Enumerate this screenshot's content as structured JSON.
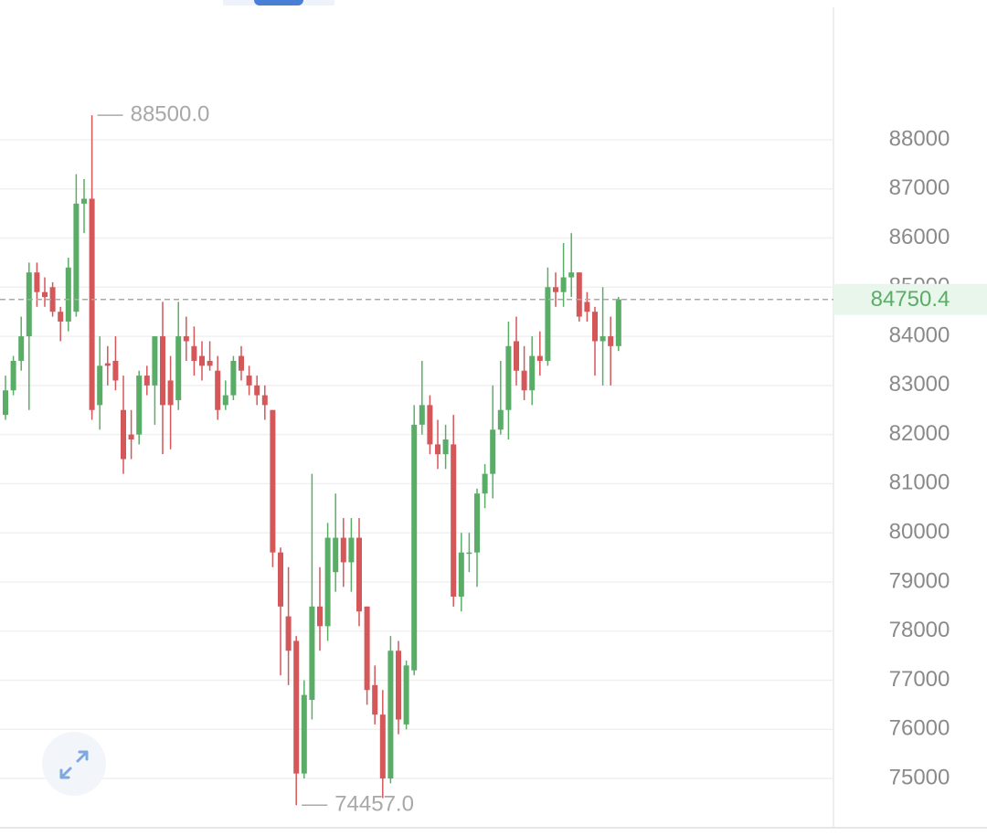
{
  "chart_data": {
    "type": "candlestick",
    "up_color": "#5aad66",
    "down_color": "#d4575a",
    "grid": true,
    "ylim": [
      74015,
      90845
    ],
    "yticks": [
      75000,
      76000,
      77000,
      78000,
      79000,
      80000,
      81000,
      82000,
      83000,
      84000,
      85000,
      86000,
      87000,
      88000
    ],
    "open": [
      82400,
      82900,
      83500,
      84000,
      85300,
      84900,
      85000,
      84500,
      84300,
      84500,
      86700,
      86800,
      82600,
      83450,
      83500,
      82500,
      82000,
      82000,
      83200,
      83000,
      84000,
      83100,
      82700,
      84000,
      83800,
      83600,
      83500,
      83300,
      82600,
      82800,
      83600,
      83200,
      83000,
      82800,
      82500,
      79600,
      78300,
      77800,
      75100,
      76600,
      78500,
      78100,
      79200,
      79900,
      79400,
      79900,
      78500,
      76900,
      76300,
      75000,
      77600,
      76100,
      77200,
      82200,
      82600,
      81800,
      81600,
      81800,
      78700,
      79600,
      79600,
      80800,
      81200,
      82100,
      82500,
      83900,
      83300,
      82900,
      83600,
      83500,
      85000,
      84900,
      85200,
      85300,
      84700,
      84500,
      83900,
      84000,
      83800
    ],
    "high": [
      83200,
      83600,
      84400,
      85500,
      85500,
      85200,
      85100,
      84600,
      85600,
      87300,
      87200,
      88500,
      84000,
      83800,
      84000,
      83200,
      82500,
      83300,
      83400,
      84000,
      84700,
      83600,
      84700,
      84400,
      84200,
      83900,
      83900,
      83600,
      83100,
      83600,
      83800,
      83400,
      83200,
      83000,
      82500,
      79700,
      79300,
      77900,
      77000,
      81200,
      79300,
      80200,
      80800,
      80300,
      80300,
      80300,
      78500,
      77300,
      76800,
      77900,
      77800,
      77400,
      82600,
      83500,
      82800,
      82300,
      82200,
      82400,
      80000,
      80000,
      80900,
      81400,
      83000,
      83500,
      84300,
      84400,
      83800,
      84000,
      84100,
      85400,
      85300,
      85900,
      86100,
      85300,
      84900,
      84600,
      85000,
      84400,
      84800
    ],
    "low": [
      82300,
      82800,
      83300,
      82500,
      84600,
      84600,
      84400,
      83900,
      84100,
      84400,
      86100,
      82300,
      82100,
      83000,
      82900,
      81200,
      81500,
      81800,
      82800,
      82200,
      81600,
      81700,
      82500,
      83500,
      83200,
      83100,
      83300,
      82300,
      82500,
      82700,
      83100,
      82800,
      82600,
      82300,
      79300,
      77100,
      76900,
      74457,
      75000,
      76200,
      77600,
      77800,
      78800,
      78900,
      78800,
      78100,
      76500,
      76100,
      74600,
      74900,
      75900,
      76000,
      77100,
      82000,
      81600,
      81300,
      81300,
      78500,
      78400,
      79200,
      78900,
      80500,
      80700,
      82000,
      81900,
      83000,
      82700,
      82600,
      83200,
      83400,
      84600,
      84600,
      84800,
      84300,
      84300,
      83200,
      83000,
      83000,
      83700
    ],
    "close": [
      82900,
      83500,
      84000,
      85300,
      84900,
      84800,
      84500,
      84300,
      85400,
      86700,
      86800,
      82500,
      83400,
      83400,
      83100,
      81500,
      81900,
      83200,
      83000,
      84000,
      82600,
      82600,
      84000,
      83900,
      83500,
      83400,
      83400,
      82500,
      82800,
      83500,
      83300,
      83000,
      82800,
      82600,
      79600,
      78500,
      77600,
      75100,
      76700,
      78500,
      78100,
      79900,
      79900,
      79400,
      79900,
      78400,
      76800,
      76300,
      75000,
      77600,
      76200,
      77300,
      82200,
      82600,
      81800,
      81600,
      81900,
      78700,
      79600,
      79600,
      80800,
      81200,
      82100,
      82500,
      83800,
      83300,
      82900,
      83600,
      83500,
      85000,
      84900,
      85200,
      85300,
      84400,
      84500,
      83900,
      84000,
      83800,
      84750.4
    ],
    "max_label": {
      "value": 88500,
      "label": "88500.0"
    },
    "min_label": {
      "value": 74457,
      "label": "74457.0"
    },
    "last_price": {
      "value": 84750.4,
      "label": "84750.4"
    }
  }
}
